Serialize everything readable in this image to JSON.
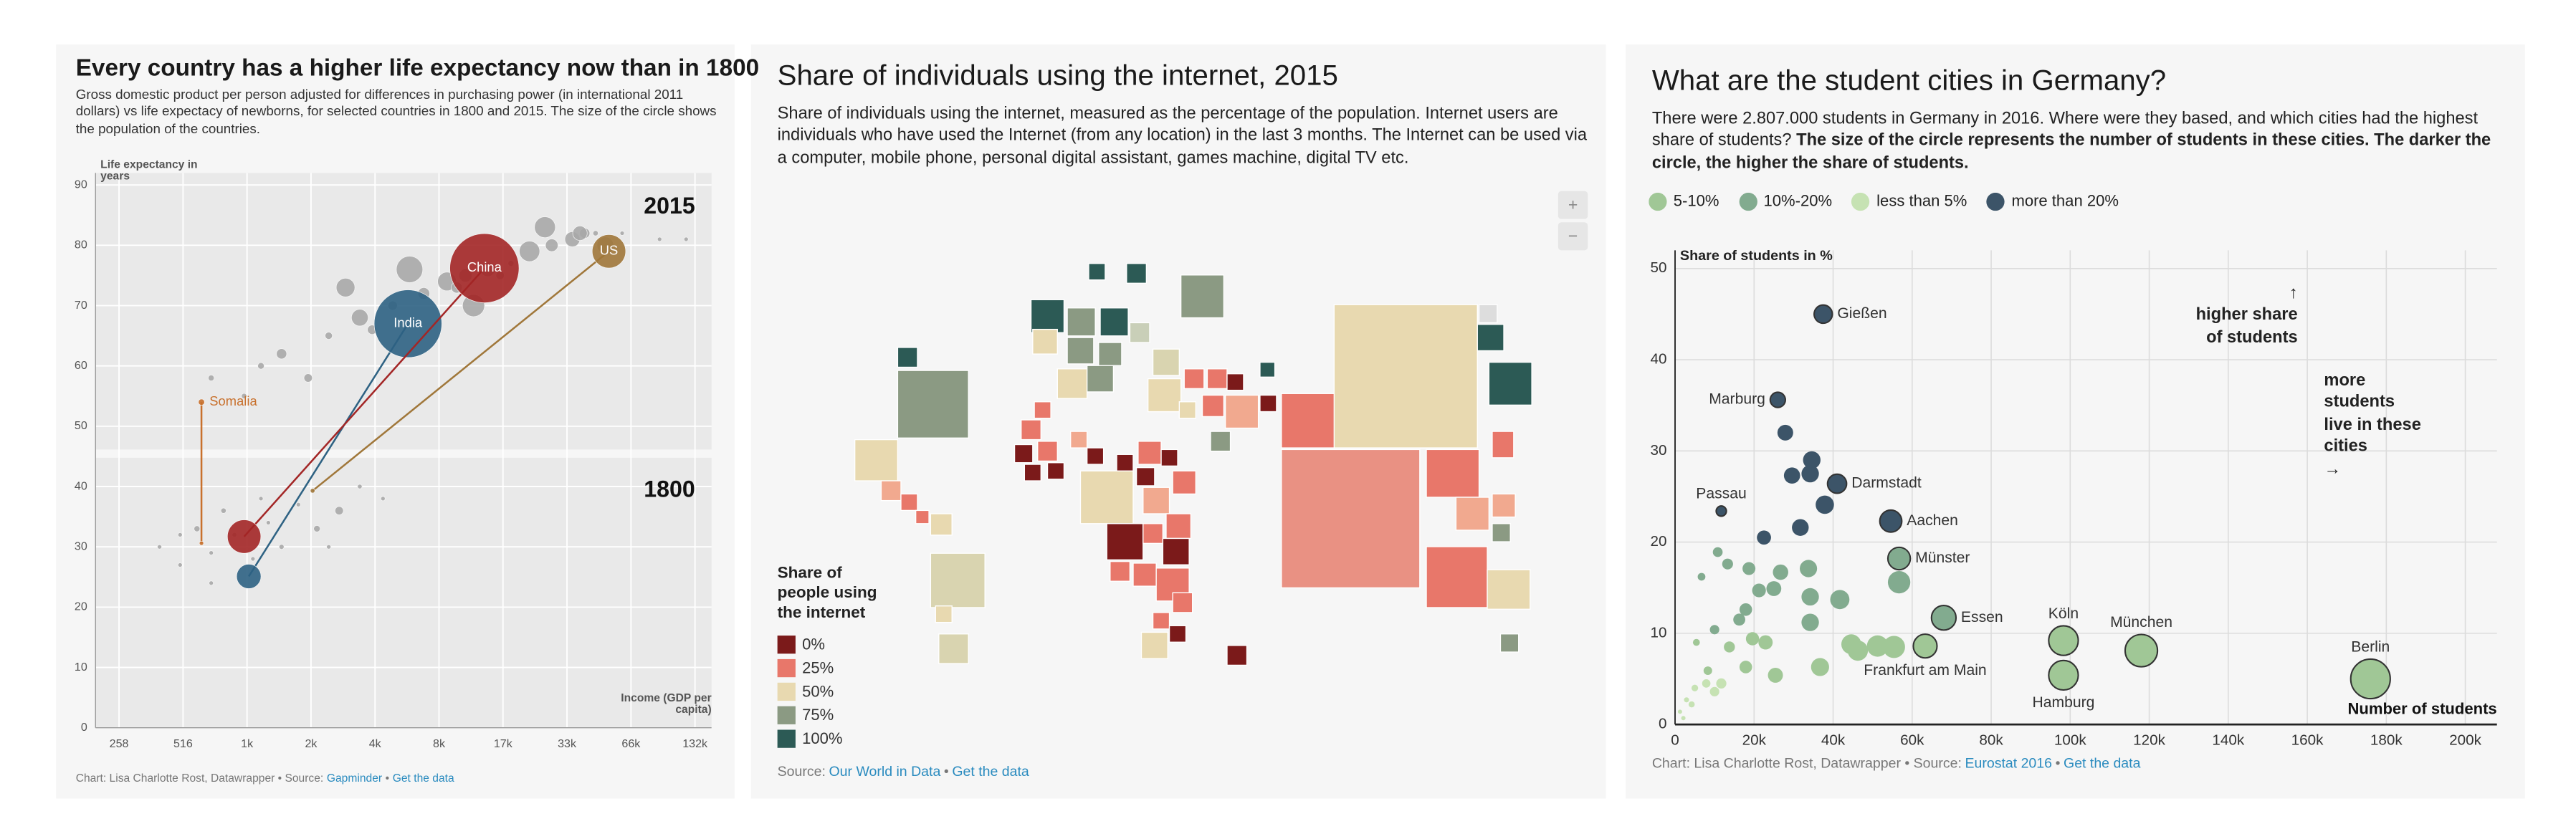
{
  "chart_data": [
    {
      "type": "scatter",
      "title": "Every country has a higher life expectancy now than in 1800",
      "subtitle": "Gross domestic product per person adjusted for differences in purchasing power (in international 2011 dollars) vs life expectacy of newborns, for selected countries in 1800 and 2015. The size of the circle shows the population of the countries.",
      "y_label": "Life expectancy in years",
      "x_label": "Income (GDP per capita)",
      "period_labels": [
        "2015",
        "1800"
      ],
      "log_x": true,
      "xlim": [
        200,
        158000
      ],
      "ylim": [
        0,
        92
      ],
      "xticks": [
        258,
        516,
        {
          "value": 1032,
          "label": "1k"
        },
        {
          "value": 2064,
          "label": "2k"
        },
        {
          "value": 4128,
          "label": "4k"
        },
        {
          "value": 8256,
          "label": "8k"
        },
        {
          "value": 16512,
          "label": "17k"
        },
        {
          "value": 33024,
          "label": "33k"
        },
        {
          "value": 66048,
          "label": "66k"
        },
        {
          "value": 132096,
          "label": "132k"
        }
      ],
      "yticks": [
        0,
        10,
        20,
        30,
        40,
        50,
        60,
        70,
        80,
        90
      ],
      "grid": true,
      "series": [
        {
          "color": "#a9a9a9",
          "x": [
            1500,
            2500,
            3500,
            5000,
            7000,
            9000,
            11000,
            14000,
            18000,
            22000,
            28000,
            35000,
            40000,
            45000,
            60000,
            90000,
            2000,
            1200,
            3000,
            6000,
            26000,
            38000,
            12000,
            700,
            1000,
            4000,
            10000,
            16000,
            50000,
            120000
          ],
          "values": [
            62,
            65,
            68,
            70,
            72,
            74,
            75,
            76,
            77,
            79,
            80,
            81,
            82,
            82,
            82,
            81,
            58,
            60,
            73,
            76,
            83,
            82,
            70,
            58,
            55,
            66,
            73,
            75,
            80,
            81
          ],
          "sizes": [
            30000000,
            15000000,
            80000000,
            25000000,
            40000000,
            100000000,
            50000000,
            60000000,
            10000000,
            120000000,
            45000000,
            65000000,
            30000000,
            8000000,
            5000000,
            3000000,
            20000000,
            12000000,
            100000000,
            200000000,
            125000000,
            60000000,
            140000000,
            10000000,
            8000000,
            25000000,
            35000000,
            20000000,
            80000000,
            4000000
          ]
        },
        {
          "color": "#a9a9a9",
          "x": [
            400,
            500,
            600,
            700,
            800,
            900,
            1100,
            1300,
            1500,
            1800,
            2200,
            2800,
            3500,
            4500,
            700,
            500,
            1200,
            2500
          ],
          "values": [
            30,
            27,
            33,
            29,
            36,
            32,
            28,
            34,
            30,
            37,
            33,
            36,
            40,
            38,
            24,
            32,
            38,
            30
          ],
          "sizes": [
            5000000,
            3000000,
            10000000,
            4000000,
            8000000,
            6000000,
            5000000,
            3000000,
            7000000,
            4000000,
            12000000,
            20000000,
            6000000,
            3000000,
            2000000,
            2000000,
            4000000,
            2000000
          ]
        },
        {
          "name": "Somalia",
          "color": "#c8702c",
          "connect": true,
          "label_position": "right",
          "x": [
            630,
            630
          ],
          "values": [
            30.6,
            54
          ],
          "sizes": [
            1000000,
            11000000
          ]
        },
        {
          "name": "US",
          "color": "#a0773a",
          "connect": true,
          "label_position": "inside",
          "x": [
            2100,
            52000
          ],
          "values": [
            39.3,
            79
          ],
          "sizes": [
            6000000,
            321000000
          ]
        },
        {
          "name": "India",
          "color": "#2e6283",
          "connect": true,
          "label_position": "inside",
          "x": [
            1052,
            5900
          ],
          "values": [
            25.1,
            67
          ],
          "sizes": [
            170000000,
            1310000000
          ]
        },
        {
          "name": "China",
          "color": "#a32626",
          "connect": true,
          "label_position": "inside",
          "x": [
            1000,
            13500
          ],
          "values": [
            31.7,
            76.2
          ],
          "sizes": [
            320000000,
            1370000000
          ]
        }
      ],
      "credit": "Chart: Lisa Charlotte Rost, Datawrapper • Source:",
      "source": "Gapminder",
      "separator": "•",
      "data_link": "Get the data"
    },
    {
      "type": "map",
      "title": "Share of individuals using the internet, 2015",
      "description": "Share of individuals using the internet, measured as the percentage of the population. Internet users are individuals who have used the Internet (from any location) in the last 3 months. The Internet can be used via a computer, mobile phone, personal digital assistant, games machine, digital TV etc.",
      "zoom_controls": [
        "+",
        "−"
      ],
      "legend_title": "Share of people using the internet",
      "legend": [
        {
          "label": "0%",
          "color": "#7b1a1a"
        },
        {
          "label": "25%",
          "color": "#e8776a"
        },
        {
          "label": "50%",
          "color": "#e8d9b0"
        },
        {
          "label": "75%",
          "color": "#8b9a83"
        },
        {
          "label": "100%",
          "color": "#2c5a55"
        }
      ],
      "credit": "Source:",
      "source": "Our World in Data",
      "separator": "•",
      "data_link": "Get the data"
    },
    {
      "type": "scatter",
      "title": "What are the student cities in Germany?",
      "description": "There were 2.807.000 students in Germany in 2016. Where were they based, and which cities had the highest share of students?",
      "description_bold": "The size of the circle represents the number of students in these cities. The darker the circle, the higher the share of students.",
      "legend": true,
      "size_by": "x",
      "y_label": "Share of students in %",
      "x_label": "Number of students",
      "annotations": [
        "↑\nhigher share\nof students",
        "more\nstudents\nlive in these\ncities\n→"
      ],
      "xlim": [
        0,
        208000
      ],
      "ylim": [
        0,
        52
      ],
      "xticks": [
        0,
        {
          "value": 20000,
          "label": "20k"
        },
        {
          "value": 40000,
          "label": "40k"
        },
        {
          "value": 60000,
          "label": "60k"
        },
        {
          "value": 80000,
          "label": "80k"
        },
        {
          "value": 100000,
          "label": "100k"
        },
        {
          "value": 120000,
          "label": "120k"
        },
        {
          "value": 140000,
          "label": "140k"
        },
        {
          "value": 160000,
          "label": "160k"
        },
        {
          "value": 180000,
          "label": "180k"
        },
        {
          "value": 200000,
          "label": "200k"
        }
      ],
      "yticks": [
        0,
        10,
        20,
        30,
        40,
        50
      ],
      "grid": true,
      "series": [
        {
          "name": "5-10%",
          "color": "#a0c796",
          "x": [
            63300,
            98300,
            98300,
            118000,
            176000,
            5400,
            13750,
            22900,
            44600,
            46250,
            51250,
            55400,
            36700,
            25400,
            17900,
            8300,
            19600
          ],
          "values": [
            8.6,
            9.2,
            5.4,
            8.1,
            5.0,
            9.0,
            8.5,
            9.0,
            8.8,
            8.1,
            8.6,
            8.5,
            6.3,
            5.4,
            6.3,
            5.9,
            9.4
          ],
          "labels": [
            "Frankfurt am Main",
            "Köln",
            "Hamburg",
            "München",
            "Berlin",
            null,
            null,
            null,
            null,
            null,
            null,
            null,
            null,
            null,
            null,
            null,
            null
          ],
          "label_positions": [
            "below",
            "above",
            "below",
            "above",
            "above",
            null,
            null,
            null,
            null,
            null,
            null,
            null,
            null,
            null,
            null,
            null,
            null
          ]
        },
        {
          "name": "10%-20%",
          "color": "#82ab8f",
          "x": [
            56700,
            68000,
            10800,
            13300,
            18700,
            26700,
            33750,
            41700,
            34200,
            25000,
            21250,
            17900,
            34200,
            56700,
            6700,
            16250,
            10000
          ],
          "values": [
            18.2,
            11.7,
            18.9,
            17.6,
            17.1,
            16.7,
            17.1,
            13.7,
            14.0,
            14.9,
            14.7,
            12.6,
            11.2,
            15.6,
            16.2,
            11.5,
            10.4
          ],
          "labels": [
            "Münster",
            "Essen",
            null,
            null,
            null,
            null,
            null,
            null,
            null,
            null,
            null,
            null,
            null,
            null,
            null,
            null,
            null
          ],
          "label_positions": [
            "right",
            "right",
            null,
            null,
            null,
            null,
            null,
            null,
            null,
            null,
            null,
            null,
            null,
            null,
            null,
            null,
            null
          ]
        },
        {
          "name": "less than 5%",
          "color": "#c6e2b3",
          "x": [
            1250,
            2900,
            5000,
            7900,
            10000,
            4200,
            11700,
            2100
          ],
          "values": [
            1.4,
            2.7,
            4.0,
            4.5,
            3.6,
            2.2,
            4.5,
            0.7
          ]
        },
        {
          "name": "more than 20%",
          "color": "#3c5468",
          "x": [
            37500,
            26000,
            11700,
            41000,
            54600,
            27900,
            34600,
            34200,
            29600,
            37900,
            31700,
            22500
          ],
          "values": [
            45.0,
            35.6,
            23.4,
            26.4,
            22.3,
            32.0,
            29.0,
            27.5,
            27.3,
            24.1,
            21.6,
            20.5
          ],
          "labels": [
            "Gießen",
            "Marburg",
            "Passau",
            "Darmstadt",
            "Aachen",
            null,
            null,
            null,
            null,
            null,
            null,
            null
          ],
          "label_positions": [
            "right",
            "left",
            "above",
            "right",
            "right",
            null,
            null,
            null,
            null,
            null,
            null,
            null
          ]
        }
      ],
      "credit": "Chart: Lisa Charlotte Rost, Datawrapper • Source:",
      "source": "Eurostat 2016",
      "separator": "•",
      "data_link": "Get the data"
    }
  ]
}
